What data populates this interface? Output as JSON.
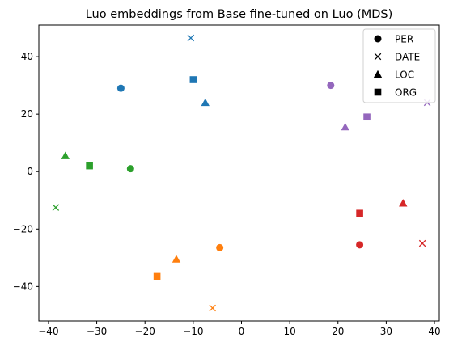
{
  "chart_data": {
    "type": "scatter",
    "title": "Luo embeddings from Base fine-tuned on Luo (MDS)",
    "xlabel": "",
    "ylabel": "",
    "xlim": [
      -42,
      41
    ],
    "ylim": [
      -52,
      51
    ],
    "x_ticks": [
      -40,
      -30,
      -20,
      -10,
      0,
      10,
      20,
      30,
      40
    ],
    "y_ticks": [
      -40,
      -20,
      0,
      20,
      40
    ],
    "grid": false,
    "legend": {
      "placement": "top-right",
      "entries": [
        {
          "label": "PER",
          "marker": "circle"
        },
        {
          "label": "DATE",
          "marker": "x"
        },
        {
          "label": "LOC",
          "marker": "triangle"
        },
        {
          "label": "ORG",
          "marker": "square"
        }
      ]
    },
    "points": [
      {
        "x": -25.0,
        "y": 29.0,
        "marker": "circle",
        "color": "#1f77b4"
      },
      {
        "x": -10.5,
        "y": 46.5,
        "marker": "x",
        "color": "#1f77b4"
      },
      {
        "x": -7.5,
        "y": 24.0,
        "marker": "triangle",
        "color": "#1f77b4"
      },
      {
        "x": -10.0,
        "y": 32.0,
        "marker": "square",
        "color": "#1f77b4"
      },
      {
        "x": -23.0,
        "y": 1.0,
        "marker": "circle",
        "color": "#2ca02c"
      },
      {
        "x": -38.5,
        "y": -12.5,
        "marker": "x",
        "color": "#2ca02c"
      },
      {
        "x": -36.5,
        "y": 5.5,
        "marker": "triangle",
        "color": "#2ca02c"
      },
      {
        "x": -31.5,
        "y": 2.0,
        "marker": "square",
        "color": "#2ca02c"
      },
      {
        "x": -4.5,
        "y": -26.5,
        "marker": "circle",
        "color": "#ff7f0e"
      },
      {
        "x": -6.0,
        "y": -47.5,
        "marker": "x",
        "color": "#ff7f0e"
      },
      {
        "x": -13.5,
        "y": -30.5,
        "marker": "triangle",
        "color": "#ff7f0e"
      },
      {
        "x": -17.5,
        "y": -36.5,
        "marker": "square",
        "color": "#ff7f0e"
      },
      {
        "x": 18.5,
        "y": 30.0,
        "marker": "circle",
        "color": "#9467bd"
      },
      {
        "x": 38.5,
        "y": 24.0,
        "marker": "x",
        "color": "#9467bd"
      },
      {
        "x": 21.5,
        "y": 15.5,
        "marker": "triangle",
        "color": "#9467bd"
      },
      {
        "x": 26.0,
        "y": 19.0,
        "marker": "square",
        "color": "#9467bd"
      },
      {
        "x": 24.5,
        "y": -25.5,
        "marker": "circle",
        "color": "#d62728"
      },
      {
        "x": 37.5,
        "y": -25.0,
        "marker": "x",
        "color": "#d62728"
      },
      {
        "x": 33.5,
        "y": -11.0,
        "marker": "triangle",
        "color": "#d62728"
      },
      {
        "x": 24.5,
        "y": -14.5,
        "marker": "square",
        "color": "#d62728"
      }
    ]
  }
}
